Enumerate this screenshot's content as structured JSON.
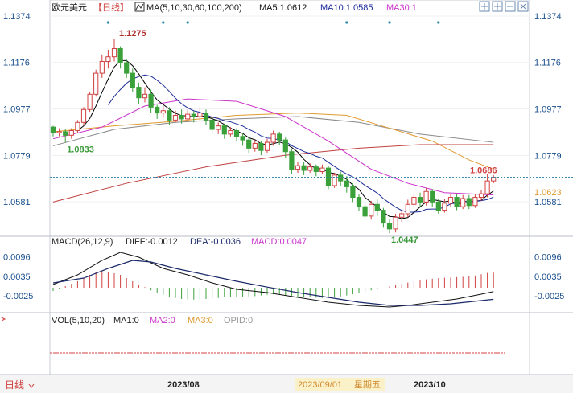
{
  "header": {
    "symbol": "欧元美元",
    "period": "【日线】",
    "ma_label": "MA(5,10,30,60,100,200)",
    "ma5": "MA5:1.0612",
    "ma10": "MA10:1.0585",
    "ma30": "MA30:1"
  },
  "macd_header": {
    "label": "MACD(26,12,9)",
    "dif": "DIFF:-0.0012",
    "dea": "DEA:-0.0036",
    "macd": "MACD:0.0047"
  },
  "vol_header": {
    "label": "VOL(5,10,20)",
    "ma1": "MA1:0",
    "ma2": "MA2:0",
    "ma3": "MA3:0",
    "opid": "OPID:0"
  },
  "bottom": {
    "period_button": "日线",
    "dates": [
      "2023/08",
      "2023/09/01",
      "星期五",
      "2023/10"
    ]
  },
  "colors": {
    "up": "#d04040",
    "down": "#3aa03a",
    "ma5": "#000000",
    "ma10": "#1a1a1a",
    "ma30": "#cc33cc",
    "ma60": "#888888",
    "ma100": "#e09a30",
    "ma200": "#c04040",
    "dea": "#1a2a6a",
    "current": "#d04040",
    "axis_text": "#1a4f8c"
  },
  "chart_data": {
    "type": "candlestick",
    "price_axis_ticks": [
      1.1374,
      1.1176,
      1.0977,
      1.0779,
      1.0581
    ],
    "ylim": [
      1.0468,
      1.1374
    ],
    "high_annotation": 1.1275,
    "low_annotations": [
      1.0833,
      1.0447
    ],
    "current_price": 1.0686,
    "ma_right_value": 1.0623,
    "macd_axis_ticks": [
      0.0096,
      0.0035,
      -0.0025
    ],
    "macd_ylim": [
      -0.0065,
      0.0125
    ],
    "marker_dots": 6,
    "candles": [
      [
        1.09,
        1.0875,
        1.0905,
        1.086
      ],
      [
        1.0875,
        1.088,
        1.0895,
        1.086
      ],
      [
        1.088,
        1.0865,
        1.089,
        1.0835
      ],
      [
        1.0865,
        1.0885,
        1.0895,
        1.085
      ],
      [
        1.0885,
        1.092,
        1.093,
        1.0875
      ],
      [
        1.092,
        1.0975,
        1.0985,
        1.091
      ],
      [
        1.0975,
        1.104,
        1.105,
        1.0965
      ],
      [
        1.104,
        1.113,
        1.1145,
        1.103
      ],
      [
        1.113,
        1.118,
        1.121,
        1.111
      ],
      [
        1.118,
        1.12,
        1.123,
        1.115
      ],
      [
        1.12,
        1.1235,
        1.1275,
        1.118
      ],
      [
        1.1235,
        1.1175,
        1.1245,
        1.115
      ],
      [
        1.1175,
        1.113,
        1.119,
        1.111
      ],
      [
        1.113,
        1.107,
        1.115,
        1.105
      ],
      [
        1.107,
        1.1025,
        1.109,
        1.1
      ],
      [
        1.1025,
        1.104,
        1.107,
        1.1005
      ],
      [
        1.104,
        1.0985,
        1.106,
        1.096
      ],
      [
        1.0985,
        1.096,
        1.0995,
        1.0935
      ],
      [
        1.096,
        1.097,
        1.099,
        1.094
      ],
      [
        1.097,
        1.093,
        1.0985,
        1.091
      ],
      [
        1.093,
        1.095,
        1.097,
        1.092
      ],
      [
        1.095,
        1.0935,
        1.0975,
        1.0915
      ],
      [
        1.0935,
        1.0955,
        1.0975,
        1.0925
      ],
      [
        1.0955,
        1.0945,
        1.097,
        1.092
      ],
      [
        1.0945,
        1.096,
        1.0985,
        1.0925
      ],
      [
        1.096,
        1.093,
        1.0975,
        1.091
      ],
      [
        1.093,
        1.089,
        1.094,
        1.087
      ],
      [
        1.089,
        1.0905,
        1.092,
        1.087
      ],
      [
        1.0905,
        1.087,
        1.0915,
        1.085
      ],
      [
        1.087,
        1.0885,
        1.09,
        1.086
      ],
      [
        1.0885,
        1.086,
        1.0895,
        1.084
      ],
      [
        1.086,
        1.0845,
        1.0875,
        1.082
      ],
      [
        1.0845,
        1.081,
        1.086,
        1.079
      ],
      [
        1.081,
        1.083,
        1.0845,
        1.0795
      ],
      [
        1.083,
        1.08,
        1.084,
        1.078
      ],
      [
        1.08,
        1.0835,
        1.085,
        1.079
      ],
      [
        1.0835,
        1.087,
        1.0885,
        1.082
      ],
      [
        1.087,
        1.0845,
        1.088,
        1.0825
      ],
      [
        1.0845,
        1.0795,
        1.0855,
        1.077
      ],
      [
        1.0795,
        1.072,
        1.0805,
        1.07
      ],
      [
        1.072,
        1.0735,
        1.075,
        1.0705
      ],
      [
        1.0735,
        1.0715,
        1.075,
        1.0695
      ],
      [
        1.0715,
        1.073,
        1.0745,
        1.0705
      ],
      [
        1.073,
        1.071,
        1.074,
        1.069
      ],
      [
        1.071,
        1.0725,
        1.074,
        1.07
      ],
      [
        1.0725,
        1.065,
        1.0735,
        1.0635
      ],
      [
        1.065,
        1.0695,
        1.0705,
        1.064
      ],
      [
        1.0695,
        1.067,
        1.071,
        1.065
      ],
      [
        1.067,
        1.0645,
        1.069,
        1.062
      ],
      [
        1.0645,
        1.06,
        1.066,
        1.058
      ],
      [
        1.06,
        1.056,
        1.0615,
        1.054
      ],
      [
        1.056,
        1.052,
        1.0575,
        1.0505
      ],
      [
        1.052,
        1.057,
        1.0585,
        1.0505
      ],
      [
        1.057,
        1.0545,
        1.059,
        1.052
      ],
      [
        1.0545,
        1.049,
        1.0555,
        1.047
      ],
      [
        1.049,
        1.0465,
        1.0505,
        1.0447
      ],
      [
        1.0465,
        1.0515,
        1.053,
        1.045
      ],
      [
        1.0515,
        1.053,
        1.0545,
        1.0495
      ],
      [
        1.053,
        1.057,
        1.059,
        1.0515
      ],
      [
        1.057,
        1.06,
        1.0615,
        1.0555
      ],
      [
        1.06,
        1.058,
        1.062,
        1.056
      ],
      [
        1.058,
        1.0625,
        1.064,
        1.0565
      ],
      [
        1.0625,
        1.058,
        1.0635,
        1.056
      ],
      [
        1.058,
        1.0545,
        1.0595,
        1.053
      ],
      [
        1.0545,
        1.0575,
        1.0595,
        1.0535
      ],
      [
        1.0575,
        1.06,
        1.0615,
        1.056
      ],
      [
        1.06,
        1.056,
        1.0615,
        1.0545
      ],
      [
        1.056,
        1.0595,
        1.061,
        1.055
      ],
      [
        1.0595,
        1.0565,
        1.061,
        1.055
      ],
      [
        1.0565,
        1.06,
        1.0615,
        1.0555
      ],
      [
        1.06,
        1.0615,
        1.063,
        1.0585
      ],
      [
        1.0615,
        1.067,
        1.07,
        1.06
      ],
      [
        1.067,
        1.0686,
        1.0695,
        1.066
      ]
    ],
    "moving_averages": {
      "ma60": [
        [
          0,
          1.082
        ],
        [
          10,
          1.089
        ],
        [
          20,
          1.092
        ],
        [
          30,
          1.0935
        ],
        [
          40,
          1.0945
        ],
        [
          50,
          1.092
        ],
        [
          60,
          1.087
        ],
        [
          72,
          1.0835
        ]
      ],
      "ma100": [
        [
          0,
          1.088
        ],
        [
          10,
          1.0905
        ],
        [
          20,
          1.0925
        ],
        [
          30,
          1.095
        ],
        [
          40,
          1.096
        ],
        [
          48,
          1.095
        ],
        [
          55,
          1.0895
        ],
        [
          62,
          1.084
        ],
        [
          68,
          1.076
        ],
        [
          72,
          1.072
        ]
      ],
      "ma200": [
        [
          0,
          1.058
        ],
        [
          12,
          1.066
        ],
        [
          25,
          1.073
        ],
        [
          38,
          1.078
        ],
        [
          50,
          1.081
        ],
        [
          60,
          1.0825
        ],
        [
          72,
          1.0825
        ]
      ],
      "ma30": [
        [
          0,
          1.085
        ],
        [
          8,
          1.09
        ],
        [
          15,
          1.099
        ],
        [
          22,
          1.102
        ],
        [
          30,
          1.101
        ],
        [
          38,
          1.0945
        ],
        [
          45,
          1.084
        ],
        [
          52,
          1.072
        ],
        [
          58,
          1.066
        ],
        [
          64,
          1.062
        ],
        [
          72,
          1.061
        ]
      ]
    },
    "macd": {
      "dif": [
        [
          0,
          0.001
        ],
        [
          4,
          0.004
        ],
        [
          8,
          0.0085
        ],
        [
          11,
          0.011
        ],
        [
          14,
          0.0095
        ],
        [
          18,
          0.006
        ],
        [
          22,
          0.004
        ],
        [
          26,
          0.0015
        ],
        [
          30,
          -0.0005
        ],
        [
          35,
          -0.0015
        ],
        [
          40,
          -0.003
        ],
        [
          45,
          -0.0045
        ],
        [
          50,
          -0.0055
        ],
        [
          55,
          -0.006
        ],
        [
          58,
          -0.0055
        ],
        [
          62,
          -0.0045
        ],
        [
          66,
          -0.0035
        ],
        [
          70,
          -0.002
        ],
        [
          72,
          -0.0012
        ]
      ],
      "dea": [
        [
          0,
          0.0015
        ],
        [
          5,
          0.003
        ],
        [
          9,
          0.006
        ],
        [
          13,
          0.0085
        ],
        [
          16,
          0.008
        ],
        [
          20,
          0.006
        ],
        [
          25,
          0.004
        ],
        [
          30,
          0.002
        ],
        [
          35,
          0.0002
        ],
        [
          40,
          -0.0015
        ],
        [
          45,
          -0.003
        ],
        [
          50,
          -0.0045
        ],
        [
          55,
          -0.0055
        ],
        [
          60,
          -0.0055
        ],
        [
          65,
          -0.005
        ],
        [
          70,
          -0.004
        ],
        [
          72,
          -0.0036
        ]
      ],
      "hist": [
        -0.001,
        -0.0005,
        0.0005,
        0.0012,
        0.002,
        0.003,
        0.004,
        0.0048,
        0.0052,
        0.005,
        0.0045,
        0.004,
        0.003,
        0.002,
        0.001,
        0.0002,
        -0.0008,
        -0.0015,
        -0.0022,
        -0.0028,
        -0.0032,
        -0.0035,
        -0.0036,
        -0.0037,
        -0.0036,
        -0.0035,
        -0.0034,
        -0.0032,
        -0.003,
        -0.003,
        -0.0029,
        -0.0028,
        -0.0027,
        -0.0026,
        -0.0024,
        -0.0022,
        -0.002,
        -0.0022,
        -0.0024,
        -0.0026,
        -0.0028,
        -0.0029,
        -0.003,
        -0.0031,
        -0.0032,
        -0.0031,
        -0.0029,
        -0.0027,
        -0.0024,
        -0.002,
        -0.0016,
        -0.0012,
        -0.0008,
        -0.0004,
        0.0,
        0.0004,
        0.0008,
        0.0012,
        0.0016,
        0.002,
        0.0024,
        0.0026,
        0.0028,
        0.003,
        0.0031,
        0.0032,
        0.0033,
        0.0034,
        0.0036,
        0.0038,
        0.0042,
        0.0046,
        0.0047
      ]
    }
  }
}
